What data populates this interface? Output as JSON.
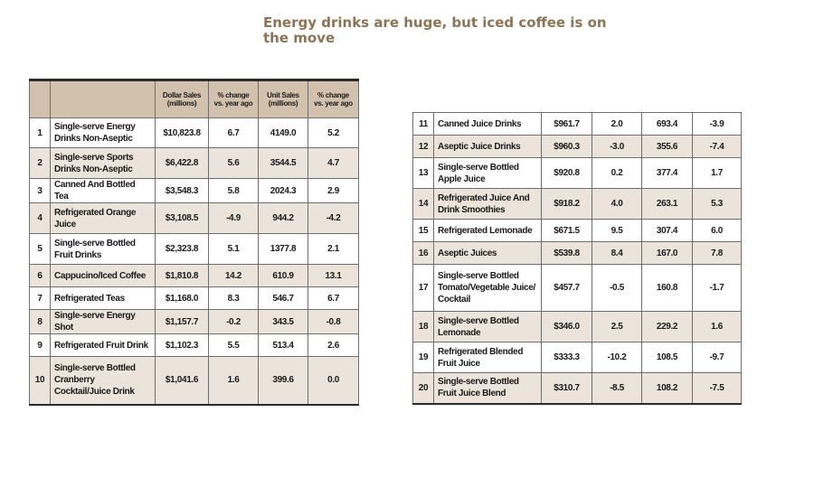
{
  "title": "Energy drinks are huge, but iced coffee is on the move",
  "chart_data": {
    "type": "table",
    "title": "Energy drinks are huge, but iced coffee is on the move",
    "columns": [
      "",
      "",
      "Dollar Sales (millions)",
      "% change vs. year ago",
      "Unit Sales (millions)",
      "% change vs. year ago"
    ],
    "rows": [
      {
        "rank": "1",
        "name": "Single-serve Energy Drinks Non-Aseptic",
        "dollar": "$10,823.8",
        "dollar_chg": "6.7",
        "unit": "4149.0",
        "unit_chg": "5.2"
      },
      {
        "rank": "2",
        "name": "Single-serve Sports Drinks Non-Aseptic",
        "dollar": "$6,422.8",
        "dollar_chg": "5.6",
        "unit": "3544.5",
        "unit_chg": "4.7"
      },
      {
        "rank": "3",
        "name": "Canned And Bottled Tea",
        "dollar": "$3,548.3",
        "dollar_chg": "5.8",
        "unit": "2024.3",
        "unit_chg": "2.9"
      },
      {
        "rank": "4",
        "name": "Refrigerated Orange Juice",
        "dollar": "$3,108.5",
        "dollar_chg": "-4.9",
        "unit": "944.2",
        "unit_chg": "-4.2"
      },
      {
        "rank": "5",
        "name": "Single-serve Bottled Fruit Drinks",
        "dollar": "$2,323.8",
        "dollar_chg": "5.1",
        "unit": "1377.8",
        "unit_chg": "2.1"
      },
      {
        "rank": "6",
        "name": "Cappucino/Iced Coffee",
        "dollar": "$1,810.8",
        "dollar_chg": "14.2",
        "unit": "610.9",
        "unit_chg": "13.1"
      },
      {
        "rank": "7",
        "name": "Refrigerated Teas",
        "dollar": "$1,168.0",
        "dollar_chg": "8.3",
        "unit": "546.7",
        "unit_chg": "6.7"
      },
      {
        "rank": "8",
        "name": "Single-serve Energy Shot",
        "dollar": "$1,157.7",
        "dollar_chg": "-0.2",
        "unit": "343.5",
        "unit_chg": "-0.8"
      },
      {
        "rank": "9",
        "name": "Refrigerated Fruit Drink",
        "dollar": "$1,102.3",
        "dollar_chg": "5.5",
        "unit": "513.4",
        "unit_chg": "2.6"
      },
      {
        "rank": "10",
        "name": "Single-serve Bottled Cranberry Cocktail/Juice Drink",
        "dollar": "$1,041.6",
        "dollar_chg": "1.6",
        "unit": "399.6",
        "unit_chg": "0.0"
      },
      {
        "rank": "11",
        "name": "Canned Juice Drinks",
        "dollar": "$961.7",
        "dollar_chg": "2.0",
        "unit": "693.4",
        "unit_chg": "-3.9"
      },
      {
        "rank": "12",
        "name": "Aseptic Juice Drinks",
        "dollar": "$960.3",
        "dollar_chg": "-3.0",
        "unit": "355.6",
        "unit_chg": "-7.4"
      },
      {
        "rank": "13",
        "name": "Single-serve Bottled Apple Juice",
        "dollar": "$920.8",
        "dollar_chg": "0.2",
        "unit": "377.4",
        "unit_chg": "1.7"
      },
      {
        "rank": "14",
        "name": "Refrigerated Juice And Drink Smoothies",
        "dollar": "$918.2",
        "dollar_chg": "4.0",
        "unit": "263.1",
        "unit_chg": "5.3"
      },
      {
        "rank": "15",
        "name": "Refrigerated Lemonade",
        "dollar": "$671.5",
        "dollar_chg": "9.5",
        "unit": "307.4",
        "unit_chg": "6.0"
      },
      {
        "rank": "16",
        "name": "Aseptic Juices",
        "dollar": "$539.8",
        "dollar_chg": "8.4",
        "unit": "167.0",
        "unit_chg": "7.8"
      },
      {
        "rank": "17",
        "name": "Single-serve Bottled Tomato/Vegetable Juice/ Cocktail",
        "dollar": "$457.7",
        "dollar_chg": "-0.5",
        "unit": "160.8",
        "unit_chg": "-1.7"
      },
      {
        "rank": "18",
        "name": "Single-serve Bottled Lemonade",
        "dollar": "$346.0",
        "dollar_chg": "2.5",
        "unit": "229.2",
        "unit_chg": "1.6"
      },
      {
        "rank": "19",
        "name": "Refrigerated Blended Fruit Juice",
        "dollar": "$333.3",
        "dollar_chg": "-10.2",
        "unit": "108.5",
        "unit_chg": "-9.7"
      },
      {
        "rank": "20",
        "name": "Single-serve Bottled Fruit Juice Blend",
        "dollar": "$310.7",
        "dollar_chg": "-8.5",
        "unit": "108.2",
        "unit_chg": "-7.5"
      }
    ]
  }
}
